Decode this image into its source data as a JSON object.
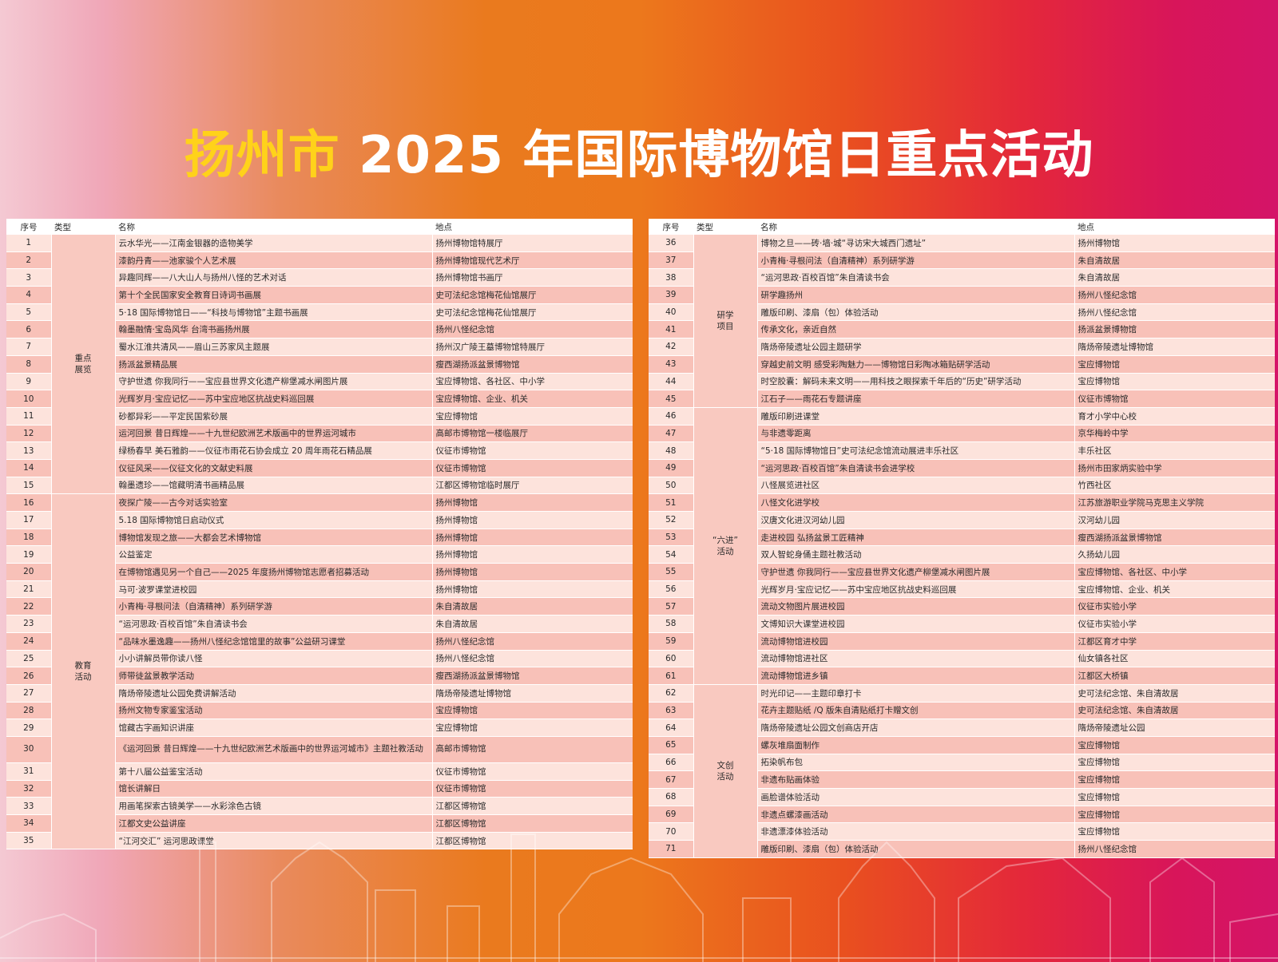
{
  "title": {
    "city": "扬州市",
    "rest": "2025 年国际博物馆日重点活动"
  },
  "colors": {
    "accent_yellow": "#ffd21a",
    "row_light": "#fde3dc",
    "row_dark": "#f8c1b8"
  },
  "headers": {
    "no": "序号",
    "type": "类型",
    "name": "名称",
    "place": "地点"
  },
  "left_groups": [
    {
      "type": "重点\n展览",
      "rows": [
        {
          "no": "1",
          "name": "云水华光——江南金银器的造物美学",
          "place": "扬州博物馆特展厅"
        },
        {
          "no": "2",
          "name": "漆韵丹青——池家骏个人艺术展",
          "place": "扬州博物馆现代艺术厅"
        },
        {
          "no": "3",
          "name": "异趣同辉——八大山人与扬州八怪的艺术对话",
          "place": "扬州博物馆书画厅"
        },
        {
          "no": "4",
          "name": "第十个全民国家安全教育日诗词书画展",
          "place": "史可法纪念馆梅花仙馆展厅"
        },
        {
          "no": "5",
          "name": "5·18 国际博物馆日——“科技与博物馆”主题书画展",
          "place": "史可法纪念馆梅花仙馆展厅"
        },
        {
          "no": "6",
          "name": "翰墨融情·宝岛风华 台湾书画扬州展",
          "place": "扬州八怪纪念馆"
        },
        {
          "no": "7",
          "name": "蜀水江淮共清风——眉山三苏家风主题展",
          "place": "扬州汉广陵王墓博物馆特展厅"
        },
        {
          "no": "8",
          "name": "扬派盆景精品展",
          "place": "瘦西湖扬派盆景博物馆"
        },
        {
          "no": "9",
          "name": "守护世遗 你我同行——宝应县世界文化遗产柳堡减水闸图片展",
          "place": "宝应博物馆、各社区、中小学"
        },
        {
          "no": "10",
          "name": "光辉岁月·宝应记忆——苏中宝应地区抗战史料巡回展",
          "place": "宝应博物馆、企业、机关"
        },
        {
          "no": "11",
          "name": "砂都异彩——平定民国紫砂展",
          "place": "宝应博物馆"
        },
        {
          "no": "12",
          "name": "运河回景 昔日辉煌——十九世纪欧洲艺术版画中的世界运河城市",
          "place": "高邮市博物馆一楼临展厅"
        },
        {
          "no": "13",
          "name": "绿杨春早 美石雅韵——仪征市雨花石协会成立 20 周年雨花石精品展",
          "place": "仪征市博物馆"
        },
        {
          "no": "14",
          "name": "仪征风采——仪征文化的文献史料展",
          "place": "仪征市博物馆"
        },
        {
          "no": "15",
          "name": "翰墨遗珍——馆藏明清书画精品展",
          "place": "江都区博物馆临时展厅"
        }
      ]
    },
    {
      "type": "教育\n活动",
      "rows": [
        {
          "no": "16",
          "name": "夜探广陵——古今对话实验室",
          "place": "扬州博物馆"
        },
        {
          "no": "17",
          "name": "5.18 国际博物馆日启动仪式",
          "place": "扬州博物馆"
        },
        {
          "no": "18",
          "name": "博物馆发现之旅——大都会艺术博物馆",
          "place": "扬州博物馆"
        },
        {
          "no": "19",
          "name": "公益鉴定",
          "place": "扬州博物馆"
        },
        {
          "no": "20",
          "name": "在博物馆遇见另一个自己——2025 年度扬州博物馆志愿者招募活动",
          "place": "扬州博物馆"
        },
        {
          "no": "21",
          "name": "马可·波罗课堂进校园",
          "place": "扬州博物馆"
        },
        {
          "no": "22",
          "name": "小青梅·寻根问法（自清精神）系列研学游",
          "place": "朱自清故居"
        },
        {
          "no": "23",
          "name": "“运河思政·百校百馆”朱自清读书会",
          "place": "朱自清故居"
        },
        {
          "no": "24",
          "name": "“品味水墨逸趣——扬州八怪纪念馆馆里的故事”公益研习课堂",
          "place": "扬州八怪纪念馆"
        },
        {
          "no": "25",
          "name": "小小讲解员带你读八怪",
          "place": "扬州八怪纪念馆"
        },
        {
          "no": "26",
          "name": "师带徒盆景教学活动",
          "place": "瘦西湖扬派盆景博物馆"
        },
        {
          "no": "27",
          "name": "隋炀帝陵遗址公园免费讲解活动",
          "place": "隋炀帝陵遗址博物馆"
        },
        {
          "no": "28",
          "name": "扬州文物专家鉴宝活动",
          "place": "宝应博物馆"
        },
        {
          "no": "29",
          "name": "馆藏古字画知识讲座",
          "place": "宝应博物馆"
        },
        {
          "no": "30",
          "name": "《运河回景 昔日辉煌——十九世纪欧洲艺术版画中的世界运河城市》主题社教活动",
          "place": "高邮市博物馆",
          "tall": true
        },
        {
          "no": "31",
          "name": "第十八届公益鉴宝活动",
          "place": "仪征市博物馆"
        },
        {
          "no": "32",
          "name": "馆长讲解日",
          "place": "仪征市博物馆"
        },
        {
          "no": "33",
          "name": "用画笔探索古镜美学——水彩涂色古镜",
          "place": "江都区博物馆"
        },
        {
          "no": "34",
          "name": "江都文史公益讲座",
          "place": "江都区博物馆"
        },
        {
          "no": "35",
          "name": "“江河交汇” 运河思政课堂",
          "place": "江都区博物馆"
        }
      ]
    }
  ],
  "right_groups": [
    {
      "type": "研学\n项目",
      "rows": [
        {
          "no": "36",
          "name": "博物之旦——砖·墙·城“寻访宋大城西门遗址”",
          "place": "扬州博物馆"
        },
        {
          "no": "37",
          "name": "小青梅·寻根问法（自清精神）系列研学游",
          "place": "朱自清故居"
        },
        {
          "no": "38",
          "name": "“运河思政·百校百馆”朱自清读书会",
          "place": "朱自清故居"
        },
        {
          "no": "39",
          "name": "研学趣扬州",
          "place": "扬州八怪纪念馆"
        },
        {
          "no": "40",
          "name": "雕版印刷、漆扇（包）体验活动",
          "place": "扬州八怪纪念馆"
        },
        {
          "no": "41",
          "name": "传承文化，亲近自然",
          "place": "扬派盆景博物馆"
        },
        {
          "no": "42",
          "name": "隋炀帝陵遗址公园主题研学",
          "place": "隋炀帝陵遗址博物馆"
        },
        {
          "no": "43",
          "name": "穿越史前文明 感受彩陶魅力——博物馆日彩陶冰箱贴研学活动",
          "place": "宝应博物馆"
        },
        {
          "no": "44",
          "name": "时空胶囊：解码未来文明——用科技之眼探索千年后的“历史”研学活动",
          "place": "宝应博物馆"
        },
        {
          "no": "45",
          "name": "江石子——雨花石专题讲座",
          "place": "仪征市博物馆"
        }
      ]
    },
    {
      "type": "“六进”\n活动",
      "rows": [
        {
          "no": "46",
          "name": "雕版印刷进课堂",
          "place": "育才小学中心校"
        },
        {
          "no": "47",
          "name": "与非遗零距离",
          "place": "京华梅岭中学"
        },
        {
          "no": "48",
          "name": "“5·18 国际博物馆日”史可法纪念馆流动展进丰乐社区",
          "place": "丰乐社区"
        },
        {
          "no": "49",
          "name": "“运河思政·百校百馆”朱自清读书会进学校",
          "place": "扬州市田家炳实验中学"
        },
        {
          "no": "50",
          "name": "八怪展览进社区",
          "place": "竹西社区"
        },
        {
          "no": "51",
          "name": "八怪文化进学校",
          "place": "江苏旅游职业学院马克思主义学院"
        },
        {
          "no": "52",
          "name": "汉唐文化进汉河幼儿园",
          "place": "汉河幼儿园"
        },
        {
          "no": "53",
          "name": "走进校园 弘扬盆景工匠精神",
          "place": "瘦西湖扬派盆景博物馆"
        },
        {
          "no": "54",
          "name": "双人智蛇身俑主题社教活动",
          "place": "久扬幼儿园"
        },
        {
          "no": "55",
          "name": "守护世遗 你我同行——宝应县世界文化遗产柳堡减水闸图片展",
          "place": "宝应博物馆、各社区、中小学"
        },
        {
          "no": "56",
          "name": "光辉岁月·宝应记忆——苏中宝应地区抗战史料巡回展",
          "place": "宝应博物馆、企业、机关"
        },
        {
          "no": "57",
          "name": "流动文物图片展进校园",
          "place": "仪征市实验小学"
        },
        {
          "no": "58",
          "name": "文博知识大课堂进校园",
          "place": "仪征市实验小学"
        },
        {
          "no": "59",
          "name": "流动博物馆进校园",
          "place": "江都区育才中学"
        },
        {
          "no": "60",
          "name": "流动博物馆进社区",
          "place": "仙女镇各社区"
        },
        {
          "no": "61",
          "name": "流动博物馆进乡镇",
          "place": "江都区大桥镇"
        }
      ]
    },
    {
      "type": "文创\n活动",
      "rows": [
        {
          "no": "62",
          "name": "时光印记——主题印章打卡",
          "place": "史可法纪念馆、朱自清故居"
        },
        {
          "no": "63",
          "name": "花卉主题贴纸 /Q 版朱自清贴纸打卡赠文创",
          "place": "史可法纪念馆、朱自清故居"
        },
        {
          "no": "64",
          "name": "隋炀帝陵遗址公园文创商店开店",
          "place": "隋炀帝陵遗址公园"
        },
        {
          "no": "65",
          "name": "螺灰堆扇面制作",
          "place": "宝应博物馆"
        },
        {
          "no": "66",
          "name": "拓染帆布包",
          "place": "宝应博物馆"
        },
        {
          "no": "67",
          "name": "非遗布贴画体验",
          "place": "宝应博物馆"
        },
        {
          "no": "68",
          "name": "画脸谱体验活动",
          "place": "宝应博物馆"
        },
        {
          "no": "69",
          "name": "非遗点螺漆画活动",
          "place": "宝应博物馆"
        },
        {
          "no": "70",
          "name": "非遗漂漆体验活动",
          "place": "宝应博物馆"
        },
        {
          "no": "71",
          "name": "雕版印刷、漆扇（包）体验活动",
          "place": "扬州八怪纪念馆"
        }
      ]
    }
  ]
}
